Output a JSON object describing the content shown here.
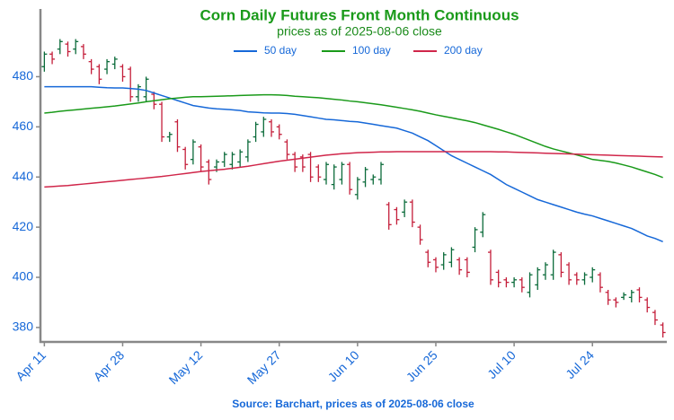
{
  "chart_data": {
    "type": "ohlc",
    "title": "Corn Daily Futures Front Month Continuous",
    "subtitle": "prices as of 2025-08-06 close",
    "source": "Source: Barchart, prices as of 2025-08-06 close",
    "categories": [
      "Apr 11",
      null,
      null,
      null,
      null,
      null,
      null,
      null,
      null,
      null,
      "Apr 28",
      null,
      null,
      null,
      null,
      null,
      null,
      null,
      null,
      null,
      "May 12",
      null,
      null,
      null,
      null,
      null,
      null,
      null,
      null,
      null,
      "May 27",
      null,
      null,
      null,
      null,
      null,
      null,
      null,
      null,
      null,
      "Jun 10",
      null,
      null,
      null,
      null,
      null,
      null,
      null,
      null,
      null,
      "Jun 25",
      null,
      null,
      null,
      null,
      null,
      null,
      null,
      null,
      null,
      "Jul 10",
      null,
      null,
      null,
      null,
      null,
      null,
      null,
      null,
      null,
      "Jul 24",
      null,
      null,
      null,
      null,
      null,
      null,
      null,
      null,
      null
    ],
    "open": [
      484,
      489,
      491,
      493,
      491,
      492,
      486,
      484,
      483,
      485,
      484,
      483,
      472,
      472,
      473,
      469,
      456,
      462,
      451,
      447,
      452,
      446,
      444,
      446,
      445,
      446,
      448,
      456,
      458,
      462,
      460,
      454,
      449,
      448,
      449,
      444,
      439,
      437,
      439,
      445,
      433,
      438,
      439,
      439,
      429,
      427,
      426,
      430,
      420,
      410,
      407,
      405,
      406,
      407,
      407,
      412,
      418,
      410,
      402,
      399,
      398,
      399,
      394,
      397,
      401,
      401,
      409,
      405,
      401,
      399,
      400,
      401,
      394,
      391,
      392,
      392,
      395,
      391,
      386,
      381
    ],
    "high": [
      490,
      490,
      495,
      494,
      495,
      493,
      487,
      485,
      487,
      488,
      485,
      484,
      477,
      480,
      474,
      470,
      458,
      463,
      452,
      455,
      453,
      447,
      447,
      450,
      450,
      451,
      455,
      462,
      464,
      463,
      461,
      455,
      450,
      449,
      450,
      445,
      446,
      445,
      446,
      446,
      440,
      444,
      441,
      446,
      430,
      428,
      431,
      431,
      421,
      411,
      408,
      410,
      412,
      408,
      408,
      420,
      426,
      411,
      403,
      400,
      400,
      400,
      402,
      404,
      406,
      411,
      410,
      406,
      402,
      402,
      404,
      402,
      395,
      392,
      394,
      395,
      396,
      392,
      387,
      382
    ],
    "low": [
      482,
      485,
      489,
      488,
      489,
      487,
      481,
      477,
      481,
      483,
      478,
      470,
      470,
      470,
      467,
      454,
      454,
      450,
      443,
      445,
      442,
      437,
      442,
      444,
      443,
      444,
      446,
      454,
      456,
      456,
      455,
      447,
      442,
      442,
      438,
      438,
      437,
      435,
      437,
      433,
      431,
      436,
      437,
      437,
      419,
      421,
      424,
      420,
      413,
      404,
      402,
      403,
      404,
      401,
      400,
      410,
      416,
      397,
      396,
      396,
      396,
      394,
      392,
      395,
      399,
      399,
      400,
      397,
      397,
      397,
      398,
      394,
      389,
      388,
      391,
      390,
      390,
      386,
      381,
      376
    ],
    "close": [
      489,
      487,
      494,
      490,
      494,
      489,
      483,
      479,
      486,
      487,
      480,
      472,
      476,
      479,
      469,
      456,
      457,
      452,
      445,
      454,
      444,
      439,
      446,
      449,
      449,
      450,
      454,
      461,
      463,
      458,
      457,
      449,
      444,
      444,
      440,
      440,
      445,
      444,
      445,
      435,
      439,
      443,
      440,
      445,
      421,
      423,
      430,
      422,
      415,
      406,
      404,
      409,
      411,
      403,
      402,
      419,
      425,
      399,
      398,
      398,
      399,
      396,
      401,
      403,
      405,
      410,
      402,
      399,
      399,
      401,
      403,
      396,
      391,
      390,
      393,
      394,
      392,
      388,
      383,
      378
    ],
    "up_color": "#0b6b3a",
    "down_color": "#c41e3a",
    "series": [
      {
        "name": "50 day",
        "color": "#1668d8",
        "values": [
          476,
          476,
          476,
          476,
          476,
          476,
          476,
          475.8,
          475.6,
          475.5,
          475.5,
          475.3,
          475,
          474.5,
          473.5,
          472.5,
          471.5,
          470.5,
          469.5,
          468.5,
          468,
          467.5,
          467.2,
          467,
          466.8,
          466.5,
          466,
          465.8,
          465.6,
          465.5,
          465.5,
          465.3,
          465,
          464.5,
          464,
          463.5,
          463,
          462.8,
          462.5,
          462.2,
          462,
          461.5,
          461,
          460.5,
          460,
          459.5,
          458.5,
          457.5,
          456,
          454.5,
          452.5,
          450.5,
          448.5,
          447,
          445.5,
          444,
          442.5,
          441,
          439,
          437,
          435.5,
          434,
          432.5,
          431,
          430,
          429,
          428,
          427,
          426,
          425.2,
          424.5,
          423.5,
          422.5,
          421.5,
          420.5,
          419.5,
          418,
          416.5,
          415.5,
          414.2
        ]
      },
      {
        "name": "100 day",
        "color": "#1a9a1a",
        "values": [
          465.5,
          465.8,
          466.2,
          466.5,
          466.8,
          467.1,
          467.4,
          467.7,
          468,
          468.3,
          468.7,
          469.1,
          469.5,
          470,
          470.4,
          470.8,
          471.2,
          471.5,
          471.8,
          472,
          472,
          472.1,
          472.2,
          472.3,
          472.4,
          472.5,
          472.6,
          472.7,
          472.8,
          472.8,
          472.7,
          472.5,
          472.2,
          472,
          471.8,
          471.6,
          471.3,
          471,
          470.7,
          470.3,
          470,
          469.6,
          469.2,
          468.8,
          468.3,
          467.8,
          467.3,
          466.8,
          466.2,
          465.5,
          464.8,
          464.2,
          463.6,
          463,
          462.4,
          461.7,
          460.8,
          459.9,
          459,
          458,
          457,
          455.8,
          454.6,
          453.4,
          452.2,
          451.2,
          450.4,
          449.6,
          448.8,
          448,
          447,
          446.6,
          446.2,
          445.6,
          444.8,
          444,
          443,
          442,
          441,
          439.8
        ]
      },
      {
        "name": "200 day",
        "color": "#d0264a",
        "values": [
          436,
          436.2,
          436.4,
          436.6,
          436.9,
          437.2,
          437.5,
          437.8,
          438.1,
          438.4,
          438.7,
          439,
          439.3,
          439.6,
          439.9,
          440.2,
          440.6,
          441,
          441.4,
          441.8,
          442.2,
          442.5,
          442.8,
          443.1,
          443.5,
          443.9,
          444.3,
          444.8,
          445.3,
          445.8,
          446.3,
          446.7,
          447.1,
          447.5,
          447.9,
          448.3,
          448.7,
          449,
          449.3,
          449.5,
          449.7,
          449.8,
          449.9,
          450,
          450,
          450.1,
          450.1,
          450.1,
          450.1,
          450.1,
          450.1,
          450.1,
          450.1,
          450.1,
          450.1,
          450.1,
          450.1,
          450.1,
          450,
          450,
          449.9,
          449.8,
          449.7,
          449.6,
          449.5,
          449.4,
          449.3,
          449.2,
          449.1,
          449,
          448.9,
          448.8,
          448.7,
          448.6,
          448.5,
          448.4,
          448.3,
          448.2,
          448.1,
          448
        ]
      }
    ],
    "ylim": [
      374.6,
      507
    ],
    "yticks": [
      380,
      400,
      420,
      440,
      460,
      480
    ]
  }
}
